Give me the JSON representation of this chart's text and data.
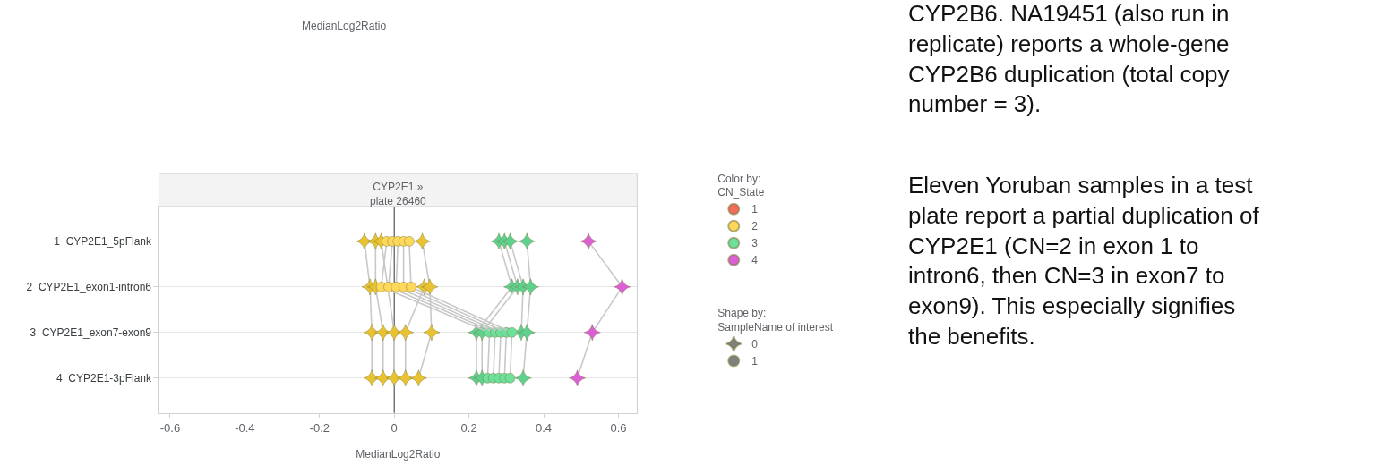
{
  "chart_data": {
    "type": "line",
    "orientation": "horizontal",
    "title": "CYP2E1 »\nplate 26460",
    "xlabel": "MedianLog2Ratio",
    "categories": [
      "1  CYP2E1_5pFlank",
      "2  CYP2E1_exon1-intron6",
      "3  CYP2E1_exon7-exon9",
      "4  CYP2E1-3pFlank"
    ],
    "xlim": [
      -0.63,
      0.65
    ],
    "xticks": [
      -0.6,
      -0.4,
      -0.2,
      0,
      0.2,
      0.4,
      0.6
    ],
    "grid": "y",
    "legend": "right",
    "legend_title": "Color by:",
    "ref_lines": [
      {
        "axis": "x",
        "value": 0,
        "color": "#555555"
      }
    ],
    "annotations": [
      "CN_State",
      "Shape by:",
      "SampleName of interest",
      "MedianLog2Ratio",
      "CYP2B6. NA19451 (also run in\nreplicate) reports a whole-gene\nCYP2B6 duplication (total copy\nnumber = 3).",
      "Eleven Yoruban samples in a test\nplate report a partial duplication of\nCYP2E1 (CN=2 in exon 1 to\nintron6, then CN=3 in exon7 to\nexon9). This especially signifies\nthe benefits."
    ],
    "series": [
      {
        "color": "#c8c8c8",
        "marker": "star",
        "values": [
          -0.08,
          -0.065,
          -0.06,
          -0.06
        ],
        "colors": [
          "#e8c231",
          "#e8c231",
          "#e8c231",
          "#e8c231"
        ]
      },
      {
        "color": "#c8c8c8",
        "marker": "star",
        "values": [
          -0.05,
          -0.05,
          -0.03,
          -0.03
        ],
        "colors": [
          "#e8c231",
          "#e8c231",
          "#e8c231",
          "#e8c231"
        ]
      },
      {
        "color": "#c8c8c8",
        "marker": "star",
        "values": [
          -0.035,
          null,
          0.0,
          0.0
        ],
        "colors": [
          "#e8c231",
          "#e8c231",
          "#e8c231",
          "#e8c231"
        ]
      },
      {
        "color": "#c8c8c8",
        "marker": "star",
        "values": [
          null,
          0.08,
          0.03,
          0.03
        ],
        "colors": [
          "#e8c231",
          "#e8c231",
          "#e8c231",
          "#e8c231"
        ]
      },
      {
        "color": "#c8c8c8",
        "marker": "star",
        "values": [
          0.075,
          0.095,
          0.1,
          0.065
        ],
        "colors": [
          "#e8c231",
          "#e8c231",
          "#e8c231",
          "#e8c231"
        ]
      },
      {
        "color": "#c8c8c8",
        "marker": "star",
        "values": [
          0.28,
          0.315,
          0.22,
          0.22
        ],
        "colors": [
          "#5fd08e",
          "#5fd08e",
          "#5fd08e",
          "#5fd08e"
        ]
      },
      {
        "color": "#c8c8c8",
        "marker": "star",
        "values": [
          0.295,
          0.33,
          0.235,
          0.235
        ],
        "colors": [
          "#5fd08e",
          "#5fd08e",
          "#5fd08e",
          "#5fd08e"
        ]
      },
      {
        "color": "#c8c8c8",
        "marker": "star",
        "values": [
          0.31,
          0.345,
          0.34,
          null
        ],
        "colors": [
          "#5fd08e",
          "#5fd08e",
          "#5fd08e",
          "#5fd08e"
        ]
      },
      {
        "color": "#c8c8c8",
        "marker": "star",
        "values": [
          0.355,
          0.365,
          0.355,
          0.345
        ],
        "colors": [
          "#5fd08e",
          "#5fd08e",
          "#5fd08e",
          "#5fd08e"
        ]
      },
      {
        "color": "#c8c8c8",
        "marker": "star",
        "values": [
          0.52,
          0.61,
          0.53,
          0.49
        ],
        "colors": [
          "#dd5fd6",
          "#dd5fd6",
          "#dd5fd6",
          "#dd5fd6"
        ]
      },
      {
        "color": "#c8c8c8",
        "marker": "circle",
        "values": [
          -0.02,
          -0.035,
          0.255,
          0.25
        ],
        "colors": [
          "#fdd85a",
          "#fdd85a",
          "#6ee09c",
          "#6ee09c"
        ]
      },
      {
        "color": "#c8c8c8",
        "marker": "circle",
        "values": [
          -0.005,
          -0.015,
          0.27,
          0.265
        ],
        "colors": [
          "#fdd85a",
          "#fdd85a",
          "#6ee09c",
          "#6ee09c"
        ]
      },
      {
        "color": "#c8c8c8",
        "marker": "circle",
        "values": [
          0.01,
          0.005,
          0.285,
          0.28
        ],
        "colors": [
          "#fdd85a",
          "#fdd85a",
          "#6ee09c",
          "#6ee09c"
        ]
      },
      {
        "color": "#c8c8c8",
        "marker": "circle",
        "values": [
          0.025,
          0.025,
          0.3,
          0.295
        ],
        "colors": [
          "#fdd85a",
          "#fdd85a",
          "#6ee09c",
          "#6ee09c"
        ]
      },
      {
        "color": "#c8c8c8",
        "marker": "circle",
        "values": [
          0.04,
          0.045,
          0.315,
          0.31
        ],
        "colors": [
          "#fdd85a",
          "#fdd85a",
          "#6ee09c",
          "#6ee09c"
        ]
      },
      {
        "type": "scatter",
        "name": "1",
        "color": "#f26b5b",
        "marker": "circle",
        "values": [
          null,
          null,
          null,
          null
        ]
      },
      {
        "type": "scatter",
        "name": "2",
        "color": "#fdd85a",
        "marker": "circle",
        "values": [
          null,
          null,
          null,
          null
        ]
      },
      {
        "type": "scatter",
        "name": "3",
        "color": "#6ee09c",
        "marker": "circle",
        "values": [
          null,
          null,
          null,
          null
        ]
      },
      {
        "type": "scatter",
        "name": "4",
        "color": "#dd5fd6",
        "marker": "circle",
        "values": [
          null,
          null,
          null,
          null
        ]
      },
      {
        "type": "scatter",
        "name": "0",
        "color": "#808080",
        "marker": "star",
        "values": [
          null,
          null,
          null,
          null
        ]
      },
      {
        "type": "scatter",
        "name": "1",
        "color": "#808080",
        "marker": "circle",
        "values": [
          null,
          null,
          null,
          null
        ]
      }
    ]
  }
}
